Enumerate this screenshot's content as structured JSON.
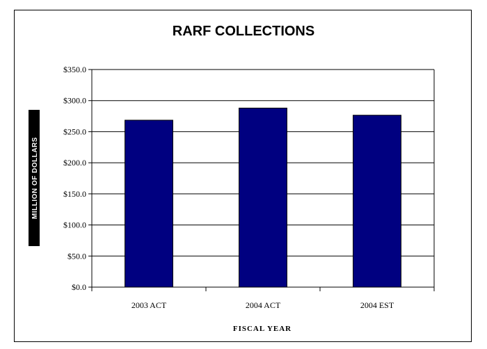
{
  "chart_data": {
    "type": "bar",
    "title": "RARF COLLECTIONS",
    "xlabel": "FISCAL YEAR",
    "ylabel": "MILLION OF DOLLARS",
    "categories": [
      "2003 ACT",
      "2004 ACT",
      "2004 EST"
    ],
    "values": [
      268.5,
      288.0,
      276.5
    ],
    "ylim": [
      0,
      350
    ],
    "yticks": [
      0,
      50,
      100,
      150,
      200,
      250,
      300,
      350
    ],
    "ytick_labels": [
      "$0.0",
      "$50.0",
      "$100.0",
      "$150.0",
      "$200.0",
      "$250.0",
      "$300.0",
      "$350.0"
    ],
    "grid": true,
    "legend": "none",
    "colors": {
      "bar": "#000080",
      "bar_edge": "#000000",
      "grid": "#000000"
    }
  }
}
